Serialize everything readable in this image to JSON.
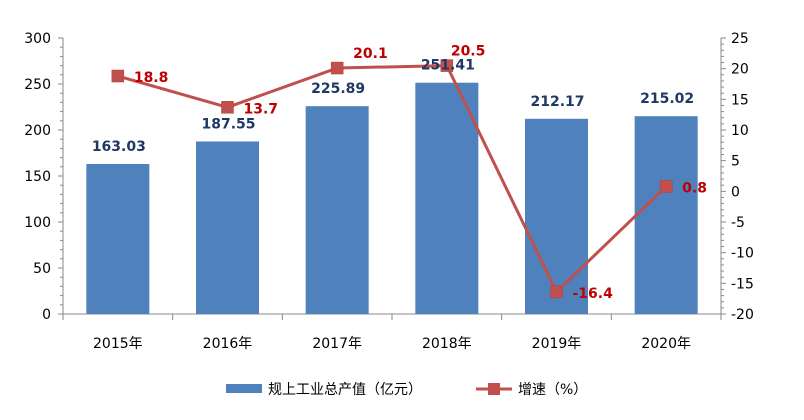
{
  "chart_data": {
    "type": "bar",
    "categories": [
      "2015年",
      "2016年",
      "2017年",
      "2018年",
      "2019年",
      "2020年"
    ],
    "series": [
      {
        "name": "规上工业总产值（亿元）",
        "type": "bar",
        "axis": "left",
        "values": [
          163.03,
          187.55,
          225.89,
          251.41,
          212.17,
          215.02
        ],
        "labels": [
          "163.03",
          "187.55",
          "225.89",
          "251.41",
          "212.17",
          "215.02"
        ],
        "color": "#4f81bd"
      },
      {
        "name": "增速（%）",
        "type": "line",
        "axis": "right",
        "values": [
          18.8,
          13.7,
          20.1,
          20.5,
          -16.4,
          0.8
        ],
        "labels": [
          "18.8",
          "13.7",
          "20.1",
          "20.5",
          "-16.4",
          "0.8"
        ],
        "color": "#c0504d"
      }
    ],
    "y_left": {
      "range": [
        0,
        300
      ],
      "ticks": [
        0,
        50,
        100,
        150,
        200,
        250,
        300
      ]
    },
    "y_right": {
      "range": [
        -20,
        25
      ],
      "ticks": [
        -20,
        -15,
        -10,
        -5,
        0,
        5,
        10,
        15,
        20,
        25
      ]
    },
    "title": "",
    "xlabel": "",
    "ylabel": "",
    "grid": false,
    "legend_position": "bottom",
    "label_colors": {
      "bar": "#1f3864",
      "line": "#c00000"
    }
  }
}
